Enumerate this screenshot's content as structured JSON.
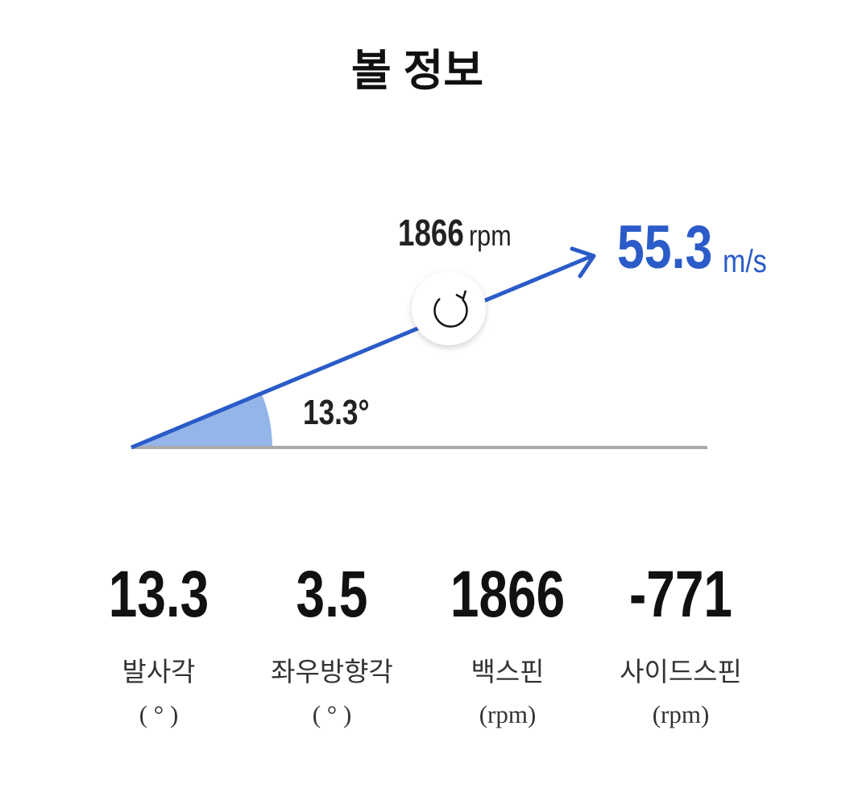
{
  "title": "볼 정보",
  "diagram": {
    "spin": "1866",
    "spin_unit": "rpm",
    "speed": "55.3",
    "speed_unit": "m/s",
    "angle": "13.3°"
  },
  "stats": [
    {
      "value": "13.3",
      "label": "발사각",
      "unit": "( ° )"
    },
    {
      "value": "3.5",
      "label": "좌우방향각",
      "unit": "( ° )"
    },
    {
      "value": "1866",
      "label": "백스핀",
      "unit": "(rpm)"
    },
    {
      "value": "-771",
      "label": "사이드스핀",
      "unit": "(rpm)"
    }
  ]
}
